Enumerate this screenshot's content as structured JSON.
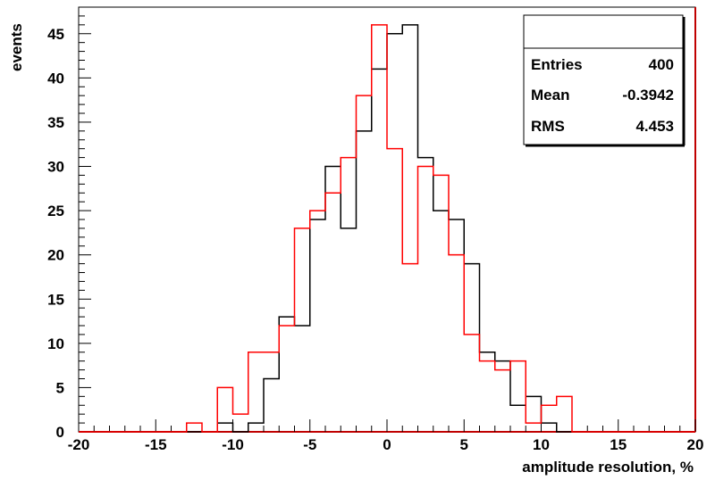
{
  "chart_data": {
    "type": "histogram",
    "xlabel": "amplitude resolution, %",
    "ylabel": "events",
    "xlim": [
      -20,
      20
    ],
    "ylim": [
      0,
      48
    ],
    "bin_width": 1,
    "x_ticks": [
      "-20",
      "-15",
      "-10",
      "-5",
      "0",
      "5",
      "10",
      "15",
      "20"
    ],
    "y_ticks": [
      "0",
      "5",
      "10",
      "15",
      "20",
      "25",
      "30",
      "35",
      "40",
      "45"
    ],
    "series": [
      {
        "color": "#000000",
        "bin_lows": [
          -13,
          -12,
          -11,
          -10,
          -9,
          -8,
          -7,
          -6,
          -5,
          -4,
          -3,
          -2,
          -1,
          0,
          1,
          2,
          3,
          4,
          5,
          6,
          7,
          8,
          9,
          10,
          11
        ],
        "counts": [
          0,
          0,
          1,
          0,
          1,
          6,
          13,
          12,
          24,
          30,
          23,
          34,
          41,
          45,
          46,
          31,
          25,
          24,
          19,
          9,
          8,
          3,
          4,
          1,
          0
        ]
      },
      {
        "color": "#ff0000",
        "bin_lows": [
          -13,
          -12,
          -11,
          -10,
          -9,
          -8,
          -7,
          -6,
          -5,
          -4,
          -3,
          -2,
          -1,
          0,
          1,
          2,
          3,
          4,
          5,
          6,
          7,
          8,
          9,
          10,
          11
        ],
        "counts": [
          1,
          0,
          5,
          2,
          9,
          9,
          12,
          23,
          25,
          27,
          31,
          38,
          46,
          32,
          19,
          30,
          29,
          20,
          11,
          8,
          7,
          8,
          1,
          3,
          4
        ]
      }
    ],
    "grid": false,
    "legend": "none"
  },
  "stats": {
    "title": "",
    "rows": [
      {
        "label": "Entries",
        "value": "400"
      },
      {
        "label": "Mean",
        "value": "-0.3942"
      },
      {
        "label": "RMS",
        "value": "4.453"
      }
    ]
  }
}
